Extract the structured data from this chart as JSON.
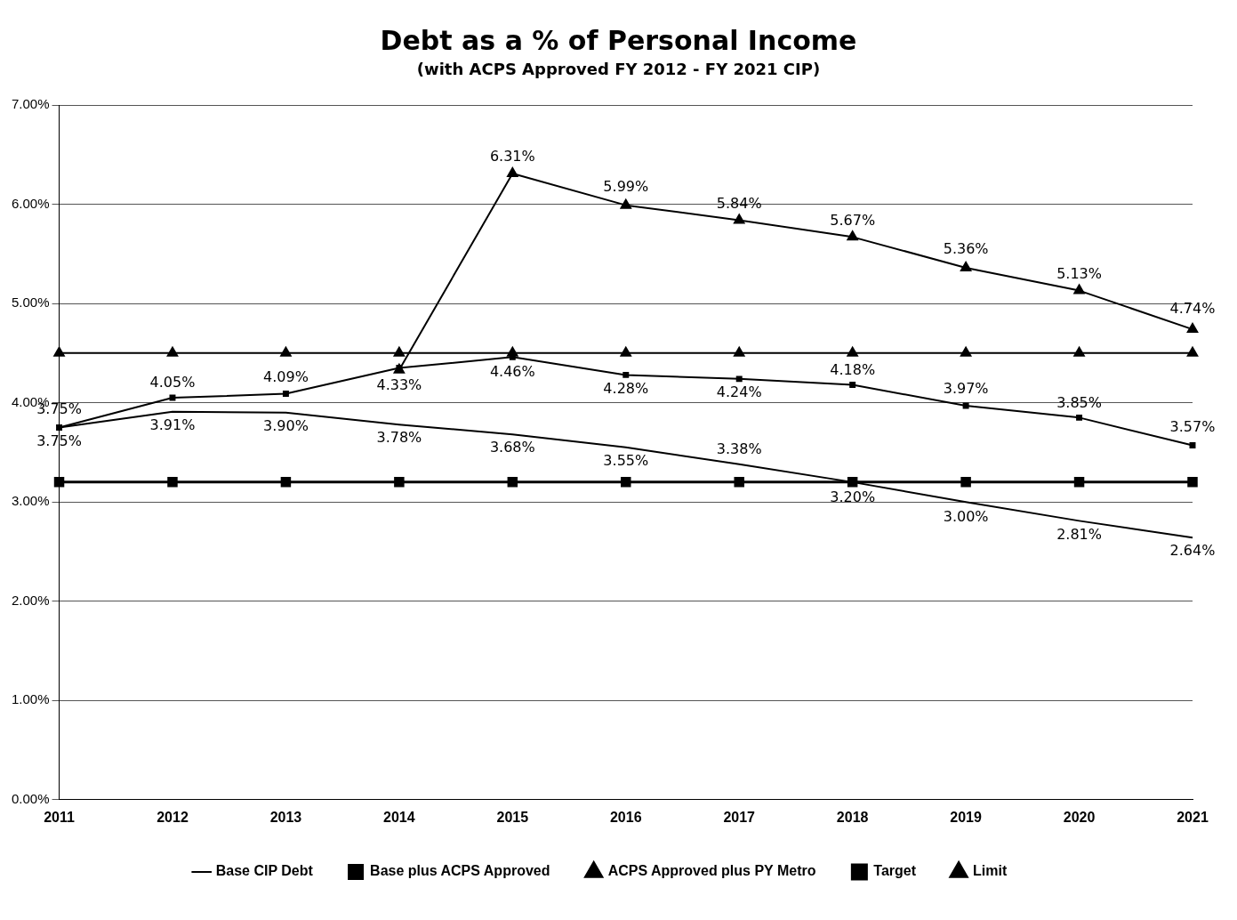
{
  "chart_data": {
    "type": "line",
    "title": "Debt as a % of Personal Income",
    "subtitle": "(with ACPS Approved FY 2012 - FY 2021 CIP)",
    "categories": [
      "2011",
      "2012",
      "2013",
      "2014",
      "2015",
      "2016",
      "2017",
      "2018",
      "2019",
      "2020",
      "2021"
    ],
    "ylim": [
      0,
      7
    ],
    "yticks": [
      {
        "value": 0,
        "label": "0.00%"
      },
      {
        "value": 1,
        "label": "1.00%"
      },
      {
        "value": 2,
        "label": "2.00%"
      },
      {
        "value": 3,
        "label": "3.00%"
      },
      {
        "value": 4,
        "label": "4.00%"
      },
      {
        "value": 5,
        "label": "5.00%"
      },
      {
        "value": 6,
        "label": "6.00%"
      },
      {
        "value": 7,
        "label": "7.00%"
      }
    ],
    "grid": "y",
    "legend": "bottom",
    "line_style": "solid",
    "series": [
      {
        "name": "Base CIP Debt",
        "color": "#000000",
        "marker": "none",
        "values": [
          3.75,
          3.91,
          3.9,
          3.78,
          3.68,
          3.55,
          3.38,
          3.2,
          3.0,
          2.81,
          2.64
        ],
        "value_labels": [
          "3.75%",
          "3.91%",
          "3.90%",
          "3.78%",
          "3.68%",
          "3.55%",
          "3.38%",
          "3.20%",
          "3.00%",
          "2.81%",
          "2.64%"
        ]
      },
      {
        "name": "Base plus ACPS Approved",
        "color": "#000000",
        "marker": "square",
        "values": [
          3.75,
          4.05,
          4.09,
          4.35,
          4.46,
          4.28,
          4.24,
          4.18,
          3.97,
          3.85,
          3.57
        ],
        "value_labels": [
          "3.75%",
          "4.05%",
          "4.09%",
          null,
          "4.46%",
          "4.28%",
          "4.24%",
          "4.18%",
          "3.97%",
          "3.85%",
          "3.57%"
        ]
      },
      {
        "name": "ACPS Approved plus PY Metro",
        "color": "#000000",
        "marker": "triangle",
        "values": [
          null,
          null,
          null,
          4.33,
          6.31,
          5.99,
          5.84,
          5.67,
          5.36,
          5.13,
          4.74
        ],
        "value_labels": [
          null,
          null,
          null,
          "4.33%",
          "6.31%",
          "5.99%",
          "5.84%",
          "5.67%",
          "5.36%",
          "5.13%",
          "4.74%"
        ]
      },
      {
        "name": "Target",
        "color": "#000000",
        "marker": "square",
        "values": [
          3.2,
          3.2,
          3.2,
          3.2,
          3.2,
          3.2,
          3.2,
          3.2,
          3.2,
          3.2,
          3.2
        ]
      },
      {
        "name": "Limit",
        "color": "#000000",
        "marker": "triangle",
        "values": [
          4.5,
          4.5,
          4.5,
          4.5,
          4.5,
          4.5,
          4.5,
          4.5,
          4.5,
          4.5,
          4.5
        ]
      }
    ]
  }
}
